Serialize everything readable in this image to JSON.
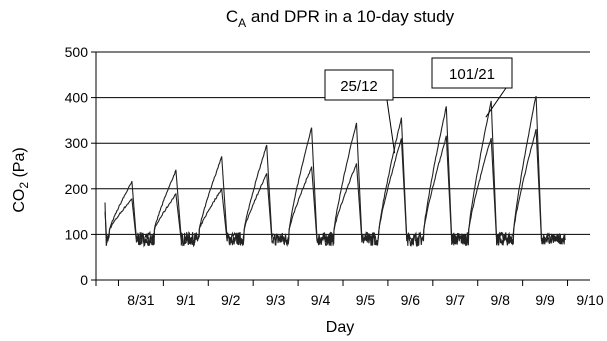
{
  "chart_data": {
    "type": "line",
    "title_main": "C",
    "title_sub": "A",
    "title_rest": " and DPR in a 10-day study",
    "xlabel": "Day",
    "ylabel_main": "CO",
    "ylabel_sub": "2",
    "ylabel_rest": " (Pa)",
    "ylim": [
      0,
      500
    ],
    "yticks": [
      0,
      100,
      200,
      300,
      400,
      500
    ],
    "xlim": [
      0,
      11
    ],
    "xticks": [
      {
        "x": 1,
        "label": "8/31"
      },
      {
        "x": 2,
        "label": "9/1"
      },
      {
        "x": 3,
        "label": "9/2"
      },
      {
        "x": 4,
        "label": "9/3"
      },
      {
        "x": 5,
        "label": "9/4"
      },
      {
        "x": 6,
        "label": "9/5"
      },
      {
        "x": 7,
        "label": "9/6"
      },
      {
        "x": 8,
        "label": "9/7"
      },
      {
        "x": 9,
        "label": "9/8"
      },
      {
        "x": 10,
        "label": "9/9"
      },
      {
        "x": 11,
        "label": "9/10"
      }
    ],
    "grid": "horizontal",
    "legend": "none",
    "line_color": "#222222",
    "baseline_co2": 90,
    "cycles": [
      {
        "start": 0.25,
        "peak_x": 0.8,
        "end": 0.9,
        "peak_high": 215,
        "peak_low": 178
      },
      {
        "start": 1.25,
        "peak_x": 1.78,
        "end": 1.9,
        "peak_high": 240,
        "peak_low": 188
      },
      {
        "start": 2.25,
        "peak_x": 2.8,
        "end": 2.92,
        "peak_high": 270,
        "peak_low": 200
      },
      {
        "start": 3.25,
        "peak_x": 3.8,
        "end": 3.92,
        "peak_high": 295,
        "peak_low": 232
      },
      {
        "start": 4.25,
        "peak_x": 4.8,
        "end": 4.92,
        "peak_high": 333,
        "peak_low": 247
      },
      {
        "start": 5.25,
        "peak_x": 5.8,
        "end": 5.92,
        "peak_high": 345,
        "peak_low": 255
      },
      {
        "start": 6.25,
        "peak_x": 6.8,
        "end": 6.92,
        "peak_high": 355,
        "peak_low": 310
      },
      {
        "start": 7.25,
        "peak_x": 7.8,
        "end": 7.92,
        "peak_high": 380,
        "peak_low": 315
      },
      {
        "start": 8.25,
        "peak_x": 8.8,
        "end": 8.92,
        "peak_high": 393,
        "peak_low": 313
      },
      {
        "start": 9.25,
        "peak_x": 9.8,
        "end": 9.92,
        "peak_high": 405,
        "peak_low": 330
      }
    ],
    "annotations": [
      {
        "label": "25/12",
        "target_x": 6.65,
        "target_y": 278
      },
      {
        "label": "101/21",
        "target_x": 8.68,
        "target_y": 357
      }
    ]
  }
}
